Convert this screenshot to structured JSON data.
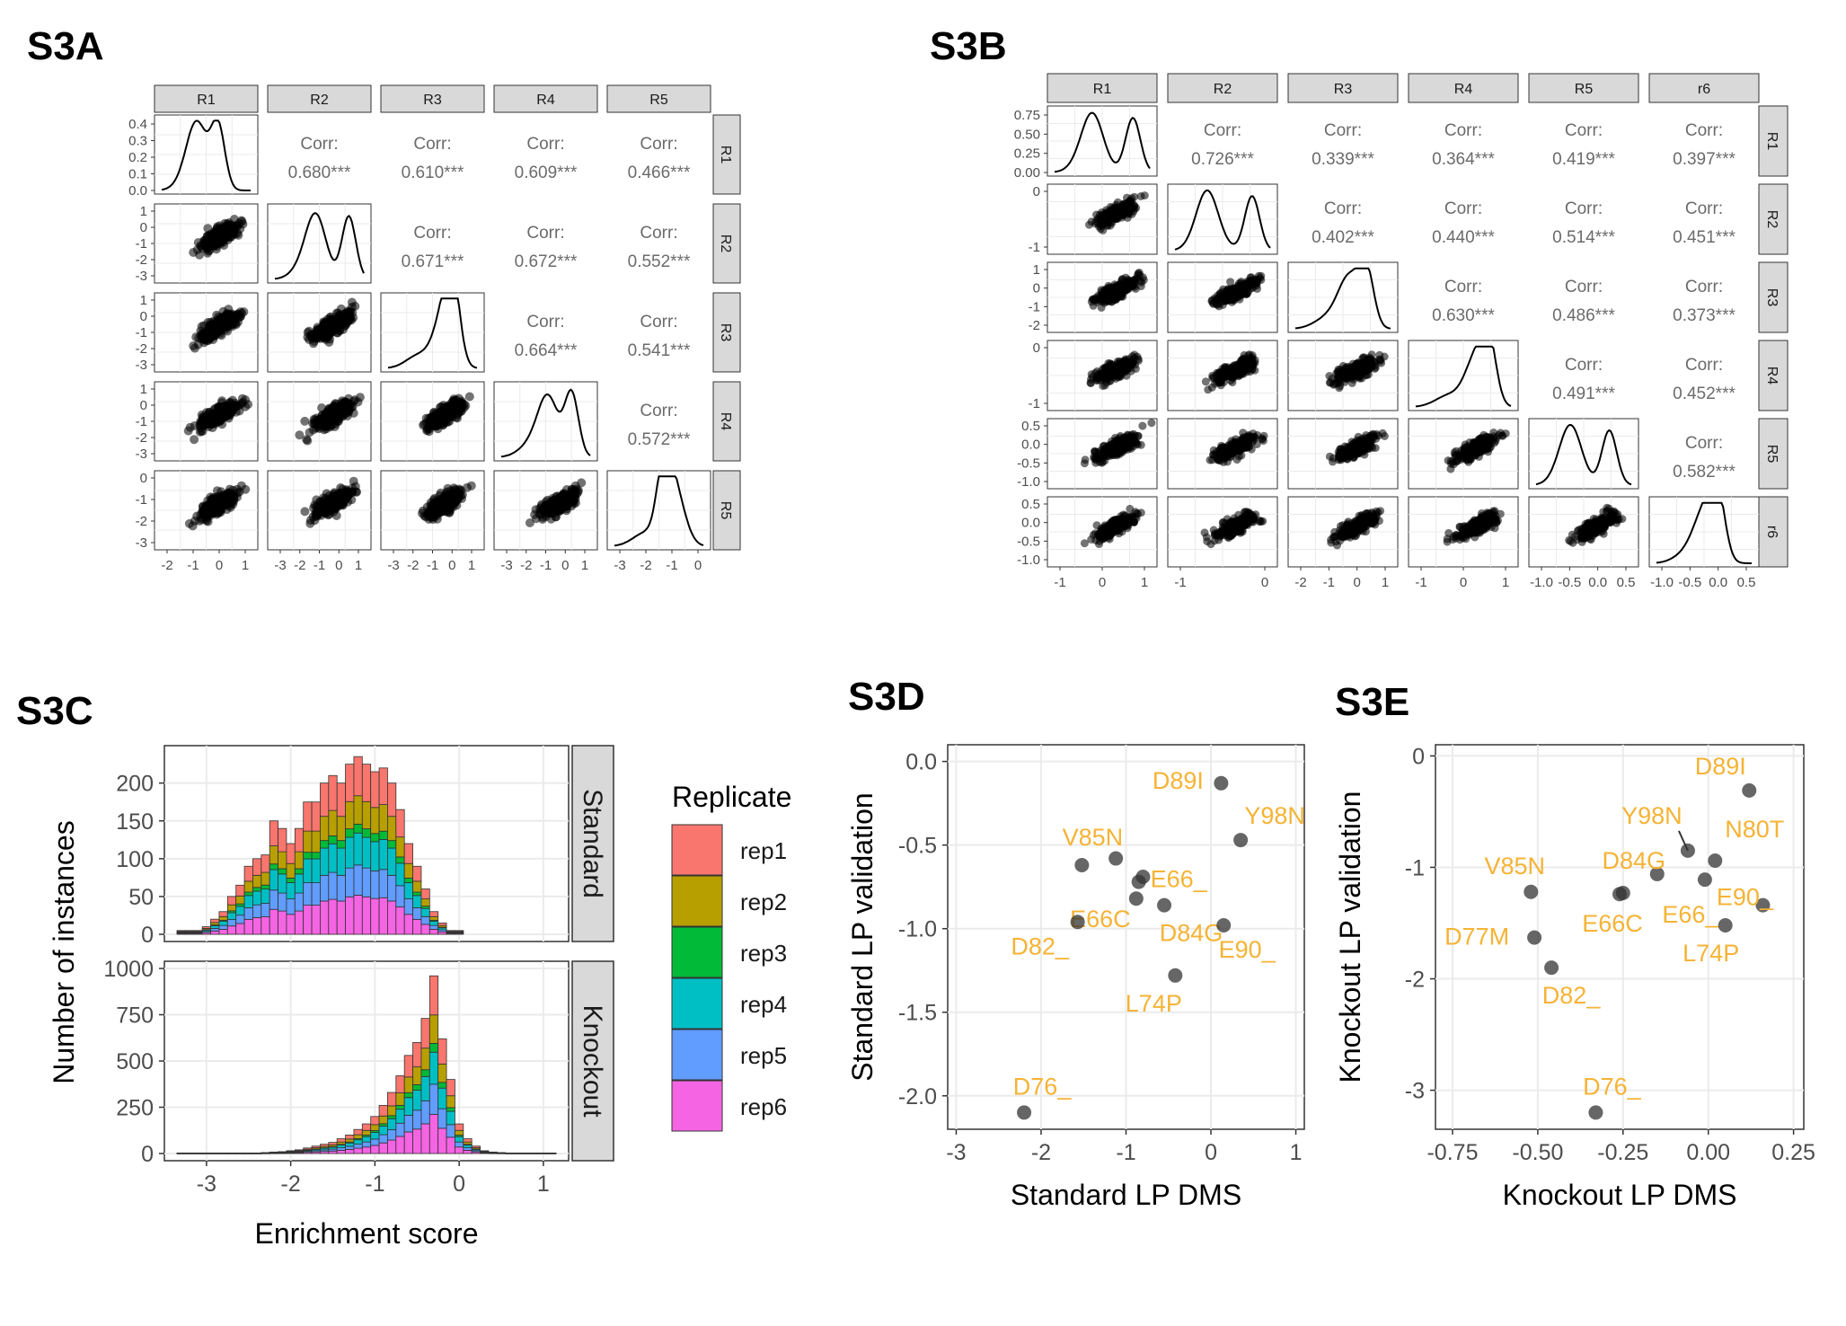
{
  "panel_labels": {
    "a": "S3A",
    "b": "S3B",
    "c": "S3C",
    "d": "S3D",
    "e": "S3E"
  },
  "colors": {
    "strip_fill": "#d9d9d9",
    "grid": "#ebebeb",
    "point": "#333333",
    "label": "#f5b335",
    "corr_text": "#6b6b6b",
    "rep1": "#f8766d",
    "rep2": "#b79f00",
    "rep3": "#00ba38",
    "rep4": "#00bfc4",
    "rep5": "#619cff",
    "rep6": "#f564e3"
  },
  "chart_data": [
    {
      "panel": "S3A",
      "type": "scatter-matrix",
      "variables": [
        "R1",
        "R2",
        "R3",
        "R4",
        "R5"
      ],
      "correlations": [
        {
          "row": 1,
          "col": 2,
          "label": "Corr:",
          "value": "0.680***"
        },
        {
          "row": 1,
          "col": 3,
          "label": "Corr:",
          "value": "0.610***"
        },
        {
          "row": 1,
          "col": 4,
          "label": "Corr:",
          "value": "0.609***"
        },
        {
          "row": 1,
          "col": 5,
          "label": "Corr:",
          "value": "0.466***"
        },
        {
          "row": 2,
          "col": 3,
          "label": "Corr:",
          "value": "0.671***"
        },
        {
          "row": 2,
          "col": 4,
          "label": "Corr:",
          "value": "0.672***"
        },
        {
          "row": 2,
          "col": 5,
          "label": "Corr:",
          "value": "0.552***"
        },
        {
          "row": 3,
          "col": 4,
          "label": "Corr:",
          "value": "0.664***"
        },
        {
          "row": 3,
          "col": 5,
          "label": "Corr:",
          "value": "0.541***"
        },
        {
          "row": 4,
          "col": 5,
          "label": "Corr:",
          "value": "0.572***"
        }
      ],
      "diag_ylim": [
        0,
        0.45
      ],
      "diag_yticks": [
        "0.4",
        "0.3",
        "0.2",
        "0.1",
        "0.0"
      ],
      "ranges": {
        "R1": [
          -3,
          1
        ],
        "R2": [
          -3,
          1
        ],
        "R3": [
          -3,
          1
        ],
        "R4": [
          -3,
          1
        ],
        "R5": [
          -3.3,
          0.5
        ]
      },
      "row_ticks": {
        "R2": [
          "1",
          "0",
          "-1",
          "-2",
          "-3"
        ],
        "R3": [
          "1",
          "0",
          "-1",
          "-2",
          "-3"
        ],
        "R4": [
          "1",
          "0",
          "-1",
          "-2",
          "-3"
        ],
        "R5": [
          "0",
          "-1",
          "-2",
          "-3"
        ]
      },
      "col_ticks": {
        "R1": [
          "-2",
          "-1",
          "0",
          "1"
        ],
        "R2": [
          "-3",
          "-2",
          "-1",
          "0",
          "1"
        ],
        "R3": [
          "-3",
          "-2",
          "-1",
          "0",
          "1"
        ],
        "R4": [
          "-3",
          "-2",
          "-1",
          "0",
          "1"
        ],
        "R5": [
          "-3",
          "-2",
          "-1",
          "0"
        ]
      }
    },
    {
      "panel": "S3B",
      "type": "scatter-matrix",
      "variables": [
        "R1",
        "R2",
        "R3",
        "R4",
        "R5",
        "r6"
      ],
      "correlations": [
        {
          "row": 1,
          "col": 2,
          "label": "Corr:",
          "value": "0.726***"
        },
        {
          "row": 1,
          "col": 3,
          "label": "Corr:",
          "value": "0.339***"
        },
        {
          "row": 1,
          "col": 4,
          "label": "Corr:",
          "value": "0.364***"
        },
        {
          "row": 1,
          "col": 5,
          "label": "Corr:",
          "value": "0.419***"
        },
        {
          "row": 1,
          "col": 6,
          "label": "Corr:",
          "value": "0.397***"
        },
        {
          "row": 2,
          "col": 3,
          "label": "Corr:",
          "value": "0.402***"
        },
        {
          "row": 2,
          "col": 4,
          "label": "Corr:",
          "value": "0.440***"
        },
        {
          "row": 2,
          "col": 5,
          "label": "Corr:",
          "value": "0.514***"
        },
        {
          "row": 2,
          "col": 6,
          "label": "Corr:",
          "value": "0.451***"
        },
        {
          "row": 3,
          "col": 4,
          "label": "Corr:",
          "value": "0.630***"
        },
        {
          "row": 3,
          "col": 5,
          "label": "Corr:",
          "value": "0.486***"
        },
        {
          "row": 3,
          "col": 6,
          "label": "Corr:",
          "value": "0.373***"
        },
        {
          "row": 4,
          "col": 5,
          "label": "Corr:",
          "value": "0.491***"
        },
        {
          "row": 4,
          "col": 6,
          "label": "Corr:",
          "value": "0.452***"
        },
        {
          "row": 5,
          "col": 6,
          "label": "Corr:",
          "value": "0.582***"
        }
      ],
      "diag_ylim": [
        0,
        0.85
      ],
      "diag_yticks": [
        "0.75",
        "0.50",
        "0.25",
        "0.00"
      ],
      "ranges": {
        "R1": [
          -1.7,
          1
        ],
        "R2": [
          -2,
          0.7
        ],
        "R3": [
          -2.1,
          1.1
        ],
        "R4": [
          -2,
          1
        ],
        "R5": [
          -1.2,
          0.7
        ],
        "r6": [
          -1.1,
          0.7
        ]
      },
      "row_ticks": {
        "R2": [
          "0",
          "-1"
        ],
        "R3": [
          "1",
          "0",
          "-1",
          "-2"
        ],
        "R4": [
          "0",
          "-1"
        ],
        "R5": [
          "0.5",
          "0.0",
          "-0.5",
          "-1.0"
        ],
        "r6": [
          "0.5",
          "0.0",
          "-0.5",
          "-1.0"
        ]
      },
      "col_ticks": {
        "R1": [
          "-1",
          "0",
          "1"
        ],
        "R2": [
          "-1",
          "0"
        ],
        "R3": [
          "-2",
          "-1",
          "0",
          "1"
        ],
        "R4": [
          "-1",
          "0",
          "1"
        ],
        "R5": [
          "-1.0",
          "-0.5",
          "0.0",
          "0.5"
        ],
        "r6": [
          "-1.0",
          "-0.5",
          "0.0",
          "0.5"
        ]
      }
    },
    {
      "panel": "S3C",
      "type": "bar",
      "stacked": true,
      "xlabel": "Enrichment score",
      "ylabel": "Number of instances",
      "xlim": [
        -3.5,
        1.3
      ],
      "xticks": [
        "-3",
        "-2",
        "-1",
        "0",
        "1"
      ],
      "legend_title": "Replicate",
      "legend_position": "right",
      "series_names": [
        "rep1",
        "rep2",
        "rep3",
        "rep4",
        "rep5",
        "rep6"
      ],
      "bin_centers": [
        -3.3,
        -3.2,
        -3.1,
        -3.0,
        -2.9,
        -2.8,
        -2.7,
        -2.6,
        -2.5,
        -2.4,
        -2.3,
        -2.2,
        -2.1,
        -2.0,
        -1.9,
        -1.8,
        -1.7,
        -1.6,
        -1.5,
        -1.4,
        -1.3,
        -1.2,
        -1.1,
        -1.0,
        -0.9,
        -0.8,
        -0.7,
        -0.6,
        -0.5,
        -0.4,
        -0.3,
        -0.2,
        -0.1,
        0.0,
        0.1,
        0.2,
        0.3,
        0.4,
        0.5,
        0.6,
        0.7,
        0.8,
        0.9,
        1.0,
        1.1
      ],
      "facets": [
        {
          "name": "Standard",
          "ylim": [
            0,
            240
          ],
          "yticks": [
            "200",
            "150",
            "100",
            "50",
            "0"
          ],
          "totals": [
            5,
            5,
            5,
            10,
            20,
            30,
            50,
            65,
            90,
            100,
            105,
            150,
            140,
            120,
            140,
            175,
            175,
            200,
            210,
            200,
            225,
            235,
            225,
            215,
            220,
            200,
            165,
            120,
            90,
            60,
            30,
            15,
            5,
            5,
            0,
            0,
            0,
            0,
            0,
            0,
            0,
            0,
            0,
            0,
            0
          ],
          "sub_totals": [
            [
              5,
              5,
              5,
              8,
              16,
              22,
              40,
              55,
              75,
              80,
              85,
              120,
              112,
              100,
              112,
              130,
              130,
              155,
              160,
              155,
              170,
              175,
              170,
              165,
              170,
              150,
              125,
              95,
              70,
              45,
              22,
              12,
              4,
              4,
              0,
              0,
              0,
              0,
              0,
              0,
              0,
              0,
              0,
              0,
              0
            ]
          ]
        },
        {
          "name": "Knockout",
          "ylim": [
            0,
            1000
          ],
          "yticks": [
            "1000",
            "750",
            "500",
            "250",
            "0"
          ],
          "totals": [
            3,
            3,
            3,
            3,
            3,
            3,
            3,
            3,
            3,
            3,
            5,
            8,
            10,
            15,
            20,
            30,
            40,
            50,
            60,
            80,
            100,
            130,
            160,
            200,
            260,
            330,
            420,
            530,
            600,
            730,
            960,
            620,
            400,
            160,
            80,
            40,
            15,
            8,
            5,
            3,
            3,
            3,
            3,
            3,
            3
          ]
        }
      ]
    },
    {
      "panel": "S3D",
      "type": "scatter",
      "xlabel": "Standard LP DMS",
      "ylabel": "Standard LP validation",
      "xlim": [
        -3.1,
        1.1
      ],
      "ylim": [
        -2.2,
        0.1
      ],
      "xticks": [
        -3,
        -2,
        -1,
        0,
        1
      ],
      "yticks": [
        0.0,
        -0.5,
        -1.0,
        -1.5,
        -2.0
      ],
      "points": [
        {
          "label": "D89I",
          "x": 0.12,
          "y": -0.13
        },
        {
          "label": "Y98N",
          "x": 0.35,
          "y": -0.47
        },
        {
          "label": "V85N",
          "x": -1.52,
          "y": -0.62
        },
        {
          "label": "E66_",
          "x": -1.12,
          "y": -0.58
        },
        {
          "label": "",
          "x": -0.8,
          "y": -0.69
        },
        {
          "label": "",
          "x": -0.85,
          "y": -0.72
        },
        {
          "label": "E66C",
          "x": -0.88,
          "y": -0.82
        },
        {
          "label": "D84G",
          "x": -0.55,
          "y": -0.86
        },
        {
          "label": "D82_",
          "x": -1.57,
          "y": -0.96
        },
        {
          "label": "E90_",
          "x": 0.15,
          "y": -0.98
        },
        {
          "label": "L74P",
          "x": -0.42,
          "y": -1.28
        },
        {
          "label": "D76_",
          "x": -2.2,
          "y": -2.1
        }
      ]
    },
    {
      "panel": "S3E",
      "type": "scatter",
      "xlabel": "Knockout LP DMS",
      "ylabel": "Knockout LP validation",
      "xlim": [
        -0.8,
        0.28
      ],
      "ylim": [
        -3.35,
        0.1
      ],
      "xticks": [
        -0.75,
        -0.5,
        -0.25,
        0.0,
        0.25
      ],
      "yticks": [
        0,
        -1,
        -2,
        -3
      ],
      "points": [
        {
          "label": "D89I",
          "x": 0.12,
          "y": -0.31
        },
        {
          "label": "Y98N",
          "x": -0.06,
          "y": -0.85
        },
        {
          "label": "N80T",
          "x": 0.02,
          "y": -0.94
        },
        {
          "label": "D84G",
          "x": -0.15,
          "y": -1.06
        },
        {
          "label": "",
          "x": -0.25,
          "y": -1.23
        },
        {
          "label": "E66_",
          "x": -0.01,
          "y": -1.11
        },
        {
          "label": "E90_",
          "x": 0.16,
          "y": -1.34
        },
        {
          "label": "L74P",
          "x": 0.05,
          "y": -1.52
        },
        {
          "label": "V85N",
          "x": -0.52,
          "y": -1.22
        },
        {
          "label": "E66C",
          "x": -0.26,
          "y": -1.24
        },
        {
          "label": "D77M",
          "x": -0.51,
          "y": -1.63
        },
        {
          "label": "D82_",
          "x": -0.46,
          "y": -1.9
        },
        {
          "label": "D76_",
          "x": -0.33,
          "y": -3.2
        }
      ]
    }
  ]
}
